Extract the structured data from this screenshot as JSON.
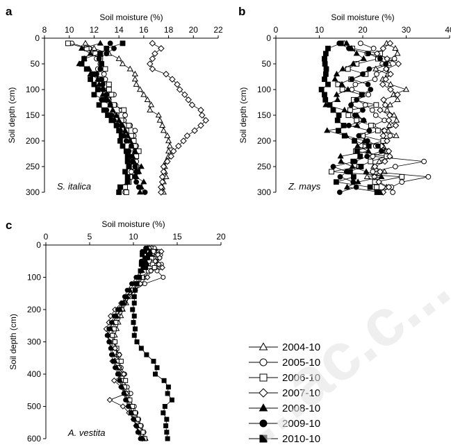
{
  "legend": {
    "entries": [
      {
        "label": "2004-10",
        "marker": "triangle",
        "filled": false
      },
      {
        "label": "2005-10",
        "marker": "circle",
        "filled": false
      },
      {
        "label": "2006-10",
        "marker": "square",
        "filled": false
      },
      {
        "label": "2007-10",
        "marker": "diamond",
        "filled": false
      },
      {
        "label": "2008-10",
        "marker": "triangle",
        "filled": true
      },
      {
        "label": "2009-10",
        "marker": "circle",
        "filled": true
      },
      {
        "label": "2010-10",
        "marker": "square",
        "filled": true
      }
    ]
  },
  "watermark": {
    "text": "...ac.c..."
  },
  "chart_data": [
    {
      "panel": "a",
      "type": "line",
      "species_label": "S. italica",
      "xlabel": "Soil moisture (%)",
      "ylabel": "Soil depth (cm)",
      "xlim": [
        8,
        22
      ],
      "ylim": [
        0,
        300
      ],
      "y_inverted": true,
      "x_ticks": [
        8,
        10,
        12,
        14,
        16,
        18,
        20,
        22
      ],
      "y_ticks": [
        0,
        50,
        100,
        150,
        200,
        250,
        300
      ],
      "depths": [
        10,
        20,
        30,
        40,
        50,
        60,
        70,
        80,
        90,
        100,
        110,
        120,
        130,
        140,
        150,
        160,
        170,
        180,
        190,
        200,
        210,
        220,
        230,
        240,
        250,
        260,
        270,
        280,
        290,
        300
      ],
      "series": [
        {
          "name": "2004-10",
          "values": [
            11.3,
            12.0,
            13.2,
            14.0,
            14.3,
            14.9,
            15.3,
            15.3,
            15.4,
            15.7,
            16.0,
            16.3,
            16.6,
            16.5,
            17.2,
            17.3,
            17.5,
            17.6,
            17.9,
            18.0,
            18.1,
            18.0,
            18.0,
            17.8,
            17.7,
            17.7,
            17.8,
            17.6,
            17.5,
            17.6
          ]
        },
        {
          "name": "2005-10",
          "values": [
            10.2,
            11.6,
            12.4,
            12.2,
            12.5,
            12.3,
            12.8,
            12.9,
            13.2,
            13.1,
            13.6,
            13.2,
            13.7,
            14.2,
            14.5,
            14.4,
            14.9,
            15.3,
            15.2,
            15.1,
            15.4,
            15.3,
            15.2,
            15.4,
            15.4,
            15.0,
            14.8,
            14.7,
            14.3,
            14.5
          ]
        },
        {
          "name": "2006-10",
          "values": [
            9.9,
            11.4,
            12.1,
            12.5,
            12.6,
            12.9,
            12.1,
            12.4,
            13.2,
            13.2,
            13.4,
            13.1,
            13.6,
            14.4,
            13.8,
            14.2,
            14.8,
            14.6,
            15.0,
            15.2,
            15.3,
            15.6,
            15.4,
            15.0,
            15.2,
            15.5,
            14.9,
            14.8,
            14.5,
            14.6
          ]
        },
        {
          "name": "2007-10",
          "values": [
            16.7,
            17.4,
            16.9,
            16.7,
            16.5,
            16.7,
            17.8,
            18.3,
            18.7,
            18.9,
            19.3,
            19.6,
            19.9,
            20.6,
            20.7,
            21.0,
            20.6,
            20.1,
            19.5,
            19.2,
            18.8,
            18.4,
            18.2,
            17.9,
            17.6,
            17.6,
            17.5,
            17.5,
            17.4,
            17.4
          ]
        },
        {
          "name": "2008-10",
          "values": [
            12.5,
            11.0,
            11.7,
            11.2,
            10.8,
            11.6,
            11.7,
            12.3,
            12.4,
            12.8,
            12.7,
            13.1,
            13.3,
            13.5,
            13.8,
            14.0,
            14.3,
            14.5,
            14.7,
            14.9,
            15.0,
            15.3,
            15.1,
            15.2,
            15.8,
            15.6,
            15.4,
            16.0,
            15.8,
            15.7
          ]
        },
        {
          "name": "2009-10",
          "values": [
            13.3,
            13.6,
            13.0,
            12.4,
            12.6,
            12.5,
            12.2,
            12.6,
            12.7,
            12.7,
            13.0,
            12.6,
            13.3,
            13.0,
            13.4,
            13.6,
            14.2,
            14.1,
            14.4,
            14.6,
            15.0,
            14.8,
            14.9,
            15.1,
            15.3,
            15.4,
            15.3,
            15.4,
            15.6,
            16.1
          ]
        },
        {
          "name": "2010-10",
          "values": [
            14.3,
            13.0,
            12.5,
            11.2,
            11.0,
            11.4,
            11.9,
            11.7,
            12.0,
            12.3,
            12.0,
            12.8,
            12.4,
            12.8,
            13.1,
            13.4,
            13.8,
            14.0,
            14.2,
            14.1,
            14.3,
            14.6,
            14.7,
            14.7,
            14.8,
            14.5,
            14.7,
            14.7,
            14.1,
            14.0
          ]
        }
      ]
    },
    {
      "panel": "b",
      "type": "line",
      "species_label": "Z. mays",
      "xlabel": "Soil moisture (%)",
      "ylabel": "Soil depth (cm)",
      "xlim": [
        0,
        40
      ],
      "ylim": [
        0,
        300
      ],
      "y_inverted": true,
      "x_ticks": [
        0,
        10,
        20,
        30,
        40
      ],
      "y_ticks": [
        0,
        50,
        100,
        150,
        200,
        250,
        300
      ],
      "depths": [
        10,
        20,
        30,
        40,
        50,
        60,
        70,
        80,
        90,
        100,
        110,
        120,
        130,
        140,
        150,
        160,
        170,
        180,
        190,
        200,
        210,
        220,
        230,
        240,
        250,
        260,
        270,
        280,
        290,
        300
      ],
      "series": [
        {
          "name": "2004-10",
          "values": [
            25.5,
            27.5,
            28.0,
            27.2,
            26.0,
            23.0,
            25.8,
            24.6,
            26.4,
            30.0,
            27.1,
            28.0,
            26.3,
            25.6,
            27.2,
            27.8,
            26.1,
            25.8,
            27.7,
            25.0,
            24.7,
            25.2,
            26.3,
            23.8,
            22.5,
            25.0,
            21.0,
            23.4,
            25.5,
            23.5
          ]
        },
        {
          "name": "2005-10",
          "values": [
            19.5,
            22.5,
            21.0,
            27.3,
            24.5,
            25.5,
            23.2,
            22.8,
            18.3,
            17.5,
            21.3,
            18.6,
            20.6,
            22.2,
            23.0,
            25.0,
            22.4,
            24.9,
            26.3,
            25.4,
            23.0,
            25.6,
            22.3,
            34.1,
            27.5,
            22.3,
            35.1,
            29.0,
            26.6,
            26.9
          ]
        },
        {
          "name": "2006-10",
          "values": [
            15.4,
            17.6,
            24.0,
            23.5,
            18.6,
            16.6,
            20.7,
            17.3,
            14.3,
            15.3,
            19.8,
            17.9,
            23.1,
            17.1,
            16.7,
            18.6,
            21.9,
            23.5,
            20.0,
            24.7,
            20.6,
            18.4,
            25.5,
            21.8,
            19.2,
            12.8,
            29.0,
            22.8,
            23.2,
            24.1
          ]
        },
        {
          "name": "2007-10",
          "values": [
            26.3,
            24.7,
            23.3,
            25.6,
            28.2,
            25.4,
            26.4,
            25.3,
            24.6,
            26.4,
            28.0,
            24.8,
            25.2,
            24.0,
            26.2,
            26.0,
            27.6,
            25.0,
            24.7,
            25.6,
            24.3,
            26.0,
            26.2,
            25.1,
            22.8,
            24.0,
            22.7,
            23.7,
            26.0,
            24.7
          ]
        },
        {
          "name": "2008-10",
          "values": [
            16.3,
            17.4,
            18.6,
            20.2,
            17.8,
            15.4,
            14.0,
            13.6,
            15.2,
            16.6,
            14.0,
            14.2,
            11.5,
            15.8,
            18.7,
            20.3,
            18.7,
            11.8,
            16.2,
            20.4,
            18.8,
            21.3,
            14.9,
            15.0,
            17.6,
            20.8,
            24.3,
            18.9,
            16.4,
            24.0
          ]
        },
        {
          "name": "2009-10",
          "values": [
            14.6,
            16.8,
            21.3,
            24.0,
            25.3,
            21.5,
            20.0,
            17.5,
            21.2,
            21.8,
            19.8,
            18.6,
            17.3,
            20.0,
            18.2,
            20.2,
            16.8,
            21.5,
            19.1,
            21.1,
            23.5,
            24.3,
            21.0,
            18.2,
            13.2,
            16.3,
            14.8,
            17.8,
            18.5,
            14.7
          ]
        },
        {
          "name": "2010-10",
          "values": [
            15.0,
            12.0,
            11.5,
            11.2,
            11.3,
            11.6,
            11.5,
            11.2,
            12.0,
            10.5,
            11.2,
            11.4,
            12.4,
            13.2,
            14.5,
            14.2,
            15.6,
            14.4,
            15.8,
            18.1,
            21.4,
            18.7,
            19.4,
            17.8,
            19.6,
            17.1,
            17.9,
            13.9,
            21.7,
            23.3
          ]
        }
      ]
    },
    {
      "panel": "c",
      "type": "line",
      "species_label": "A. vestita",
      "xlabel": "Soil moisture (%)",
      "ylabel": "Soil depth (cm)",
      "xlim": [
        0,
        20
      ],
      "ylim": [
        0,
        600
      ],
      "y_inverted": true,
      "x_ticks": [
        0,
        5,
        10,
        15,
        20
      ],
      "y_ticks": [
        0,
        100,
        200,
        300,
        400,
        500,
        600
      ],
      "depths": [
        10,
        20,
        30,
        40,
        50,
        60,
        70,
        80,
        100,
        120,
        140,
        160,
        180,
        200,
        220,
        240,
        260,
        280,
        300,
        320,
        340,
        360,
        380,
        400,
        420,
        440,
        460,
        480,
        500,
        520,
        540,
        560,
        580,
        600
      ],
      "series": [
        {
          "name": "2004-10",
          "values": [
            12.1,
            12.7,
            12.5,
            12.9,
            12.2,
            12.6,
            12.3,
            11.9,
            11.2,
            10.5,
            10.0,
            9.5,
            9.2,
            8.8,
            8.6,
            8.3,
            8.1,
            7.9,
            7.8,
            8.0,
            8.1,
            8.3,
            8.5,
            8.4,
            8.6,
            8.9,
            9.1,
            9.4,
            9.6,
            10.0,
            10.4,
            10.7,
            11.0,
            11.4
          ]
        },
        {
          "name": "2005-10",
          "values": [
            12.4,
            12.9,
            13.1,
            12.8,
            12.6,
            13.2,
            13.0,
            12.7,
            13.4,
            11.3,
            10.1,
            9.6,
            9.0,
            8.7,
            8.0,
            7.8,
            7.6,
            7.5,
            7.7,
            8.0,
            8.4,
            8.2,
            8.6,
            9.0,
            8.8,
            9.3,
            9.7,
            9.5,
            10.1,
            10.3,
            10.6,
            10.9,
            11.2,
            11.0
          ]
        },
        {
          "name": "2006-10",
          "values": [
            12.0,
            12.3,
            12.7,
            12.1,
            11.8,
            12.2,
            12.4,
            11.7,
            11.0,
            10.4,
            9.8,
            9.2,
            8.9,
            8.4,
            8.2,
            8.0,
            7.8,
            7.6,
            7.9,
            8.1,
            8.3,
            8.6,
            8.4,
            8.8,
            9.1,
            9.0,
            9.3,
            9.6,
            9.9,
            10.2,
            10.5,
            10.8,
            11.1,
            11.3
          ]
        },
        {
          "name": "2007-10",
          "values": [
            11.8,
            13.2,
            12.8,
            13.0,
            12.5,
            12.9,
            13.3,
            12.0,
            11.6,
            10.8,
            10.2,
            9.4,
            8.6,
            7.9,
            7.4,
            7.2,
            6.9,
            7.1,
            7.3,
            7.9,
            8.4,
            7.6,
            8.3,
            8.9,
            7.8,
            8.6,
            9.2,
            7.3,
            8.8,
            9.5,
            10.0,
            10.3,
            10.6,
            11.0
          ]
        },
        {
          "name": "2008-10",
          "values": [
            11.6,
            11.9,
            12.0,
            11.5,
            11.4,
            11.6,
            11.2,
            11.0,
            10.6,
            10.1,
            9.6,
            9.3,
            8.9,
            8.5,
            8.1,
            7.6,
            7.4,
            7.1,
            7.3,
            7.5,
            7.7,
            7.9,
            8.1,
            8.3,
            8.5,
            8.7,
            9.0,
            9.2,
            9.5,
            9.8,
            10.1,
            10.4,
            10.6,
            11.1
          ]
        },
        {
          "name": "2009-10",
          "values": [
            11.4,
            11.0,
            11.7,
            11.3,
            10.9,
            11.2,
            11.1,
            10.8,
            10.3,
            9.8,
            9.3,
            9.0,
            8.7,
            8.2,
            7.8,
            7.5,
            7.2,
            7.0,
            7.2,
            7.4,
            7.5,
            7.7,
            7.9,
            8.2,
            8.4,
            8.6,
            8.9,
            9.1,
            9.4,
            9.7,
            10.0,
            10.3,
            10.5,
            10.8
          ]
        },
        {
          "name": "2010-10",
          "values": [
            11.5,
            11.3,
            11.0,
            11.6,
            11.2,
            10.9,
            11.4,
            10.8,
            10.7,
            10.4,
            10.2,
            10.1,
            10.1,
            9.9,
            10.1,
            10.0,
            10.2,
            10.1,
            10.4,
            10.9,
            11.5,
            12.3,
            12.7,
            12.5,
            13.5,
            14.0,
            13.9,
            14.4,
            13.6,
            13.4,
            13.8,
            13.7,
            13.8,
            13.9
          ]
        }
      ]
    }
  ]
}
